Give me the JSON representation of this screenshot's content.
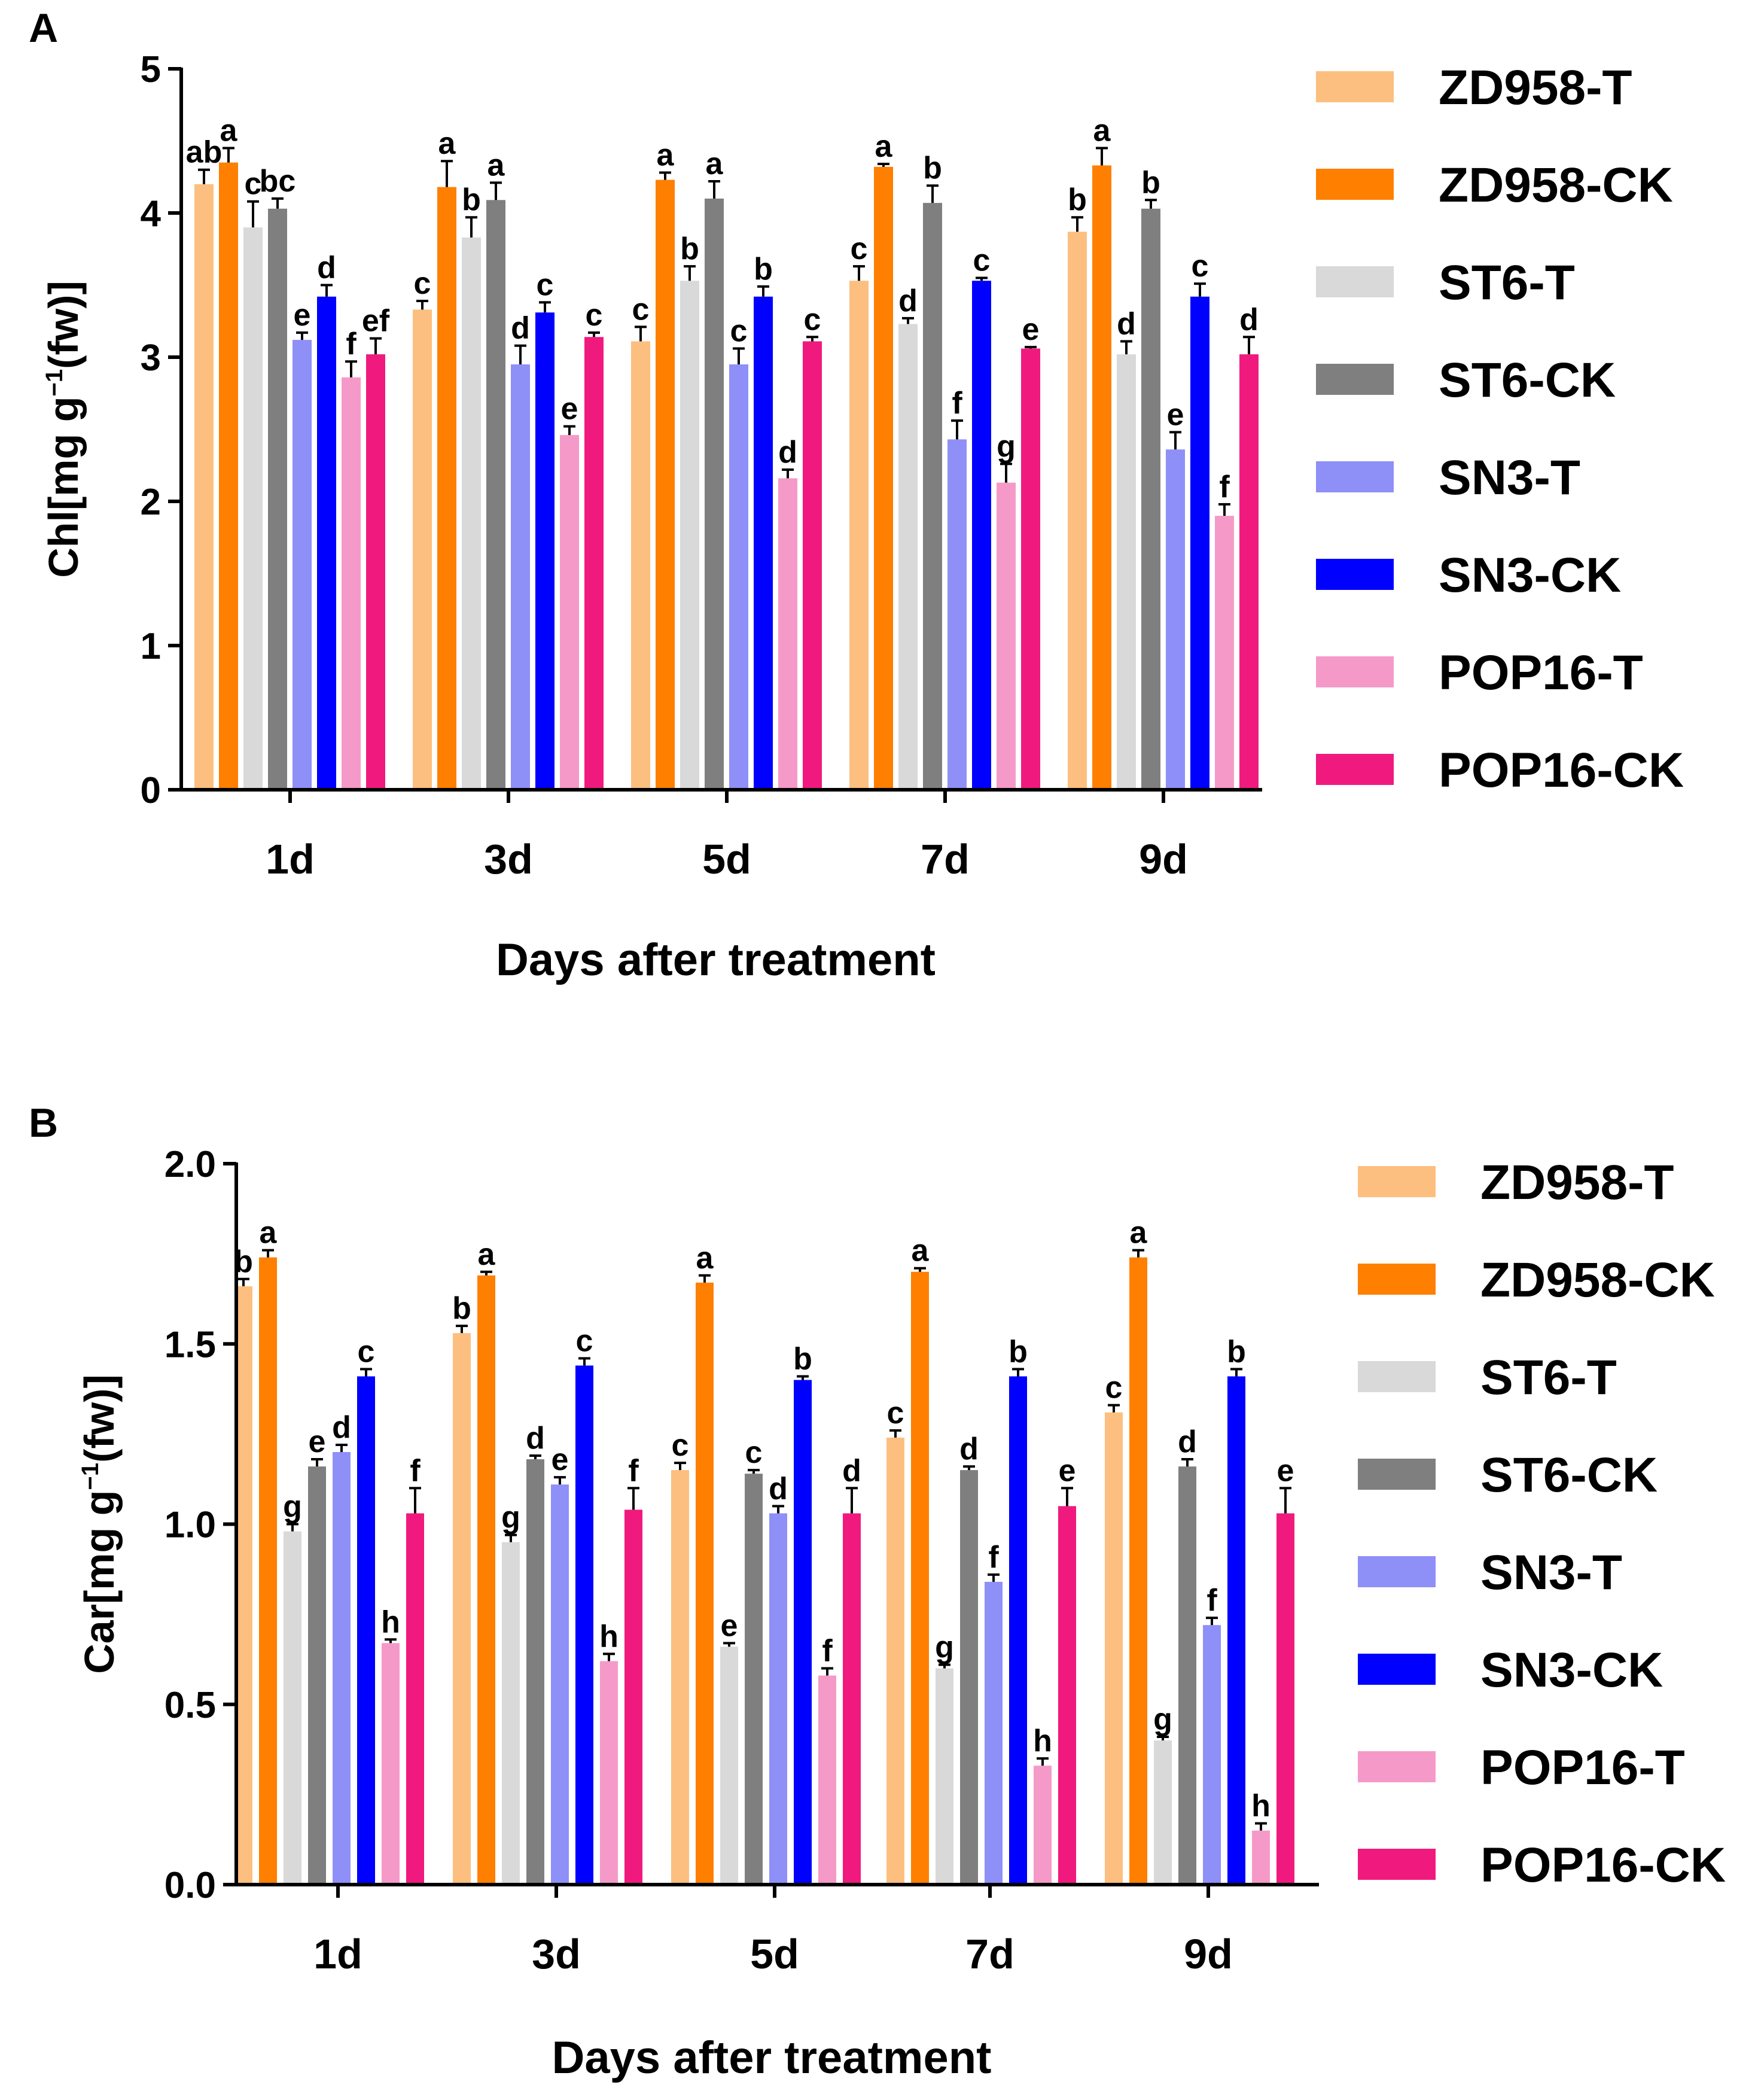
{
  "chart_data": [
    {
      "panel": "A",
      "type": "bar",
      "categories": [
        "1d",
        "3d",
        "5d",
        "7d",
        "9d"
      ],
      "ylabel_main": "Chl[mg g",
      "ylabel_sup": "−1",
      "ylabel_tail": "(fw)]",
      "xlabel": "Days after treatment",
      "ylim": [
        0,
        5
      ],
      "yticks": [
        "0",
        "1",
        "2",
        "3",
        "4",
        "5"
      ],
      "series": [
        {
          "name": "ZD958-T",
          "color": "#FDBF7F",
          "values": [
            4.2,
            3.33,
            3.11,
            3.53,
            3.87
          ],
          "errors": [
            0.1,
            0.06,
            0.1,
            0.1,
            0.1
          ],
          "letters": [
            "ab",
            "c",
            "c",
            "c",
            "b"
          ]
        },
        {
          "name": "ZD958-CK",
          "color": "#FF7F00",
          "values": [
            4.35,
            4.18,
            4.23,
            4.32,
            4.33
          ],
          "errors": [
            0.1,
            0.18,
            0.05,
            0.02,
            0.12
          ],
          "letters": [
            "a",
            "a",
            "a",
            "a",
            "a"
          ]
        },
        {
          "name": "ST6-T",
          "color": "#D9D9D9",
          "values": [
            3.9,
            3.83,
            3.53,
            3.23,
            3.02
          ],
          "errors": [
            0.18,
            0.14,
            0.1,
            0.04,
            0.09
          ],
          "letters": [
            "c",
            "b",
            "b",
            "d",
            "d"
          ]
        },
        {
          "name": "ST6-CK",
          "color": "#7F7F7F",
          "values": [
            4.03,
            4.09,
            4.1,
            4.07,
            4.03
          ],
          "errors": [
            0.07,
            0.12,
            0.12,
            0.12,
            0.06
          ],
          "letters": [
            "bc",
            "a",
            "a",
            "b",
            "b"
          ]
        },
        {
          "name": "SN3-T",
          "color": "#8F8FF8",
          "values": [
            3.12,
            2.95,
            2.95,
            2.43,
            2.36
          ],
          "errors": [
            0.05,
            0.13,
            0.11,
            0.13,
            0.12
          ],
          "letters": [
            "e",
            "d",
            "c",
            "f",
            "e"
          ]
        },
        {
          "name": "SN3-CK",
          "color": "#0000FF",
          "values": [
            3.42,
            3.31,
            3.42,
            3.53,
            3.42
          ],
          "errors": [
            0.08,
            0.07,
            0.07,
            0.02,
            0.09
          ],
          "letters": [
            "d",
            "c",
            "b",
            "c",
            "c"
          ]
        },
        {
          "name": "POP16-T",
          "color": "#F59AC8",
          "values": [
            2.86,
            2.46,
            2.16,
            2.13,
            1.9
          ],
          "errors": [
            0.11,
            0.06,
            0.06,
            0.13,
            0.08
          ],
          "letters": [
            "f",
            "e",
            "d",
            "g",
            "f"
          ]
        },
        {
          "name": "POP16-CK",
          "color": "#F01A7F",
          "values": [
            3.02,
            3.14,
            3.11,
            3.06,
            3.02
          ],
          "errors": [
            0.11,
            0.03,
            0.03,
            0.01,
            0.12
          ],
          "letters": [
            "ef",
            "c",
            "c",
            "e",
            "d"
          ]
        }
      ]
    },
    {
      "panel": "B",
      "type": "bar",
      "categories": [
        "1d",
        "3d",
        "5d",
        "7d",
        "9d"
      ],
      "ylabel_main": "Car[mg g",
      "ylabel_sup": "−1",
      "ylabel_tail": "(fw)]",
      "xlabel": "Days after treatment",
      "ylim": [
        0,
        2
      ],
      "yticks": [
        "0.0",
        "0.5",
        "1.0",
        "1.5",
        "2.0"
      ],
      "series": [
        {
          "name": "ZD958-T",
          "color": "#FDBF7F",
          "values": [
            1.66,
            1.53,
            1.15,
            1.24,
            1.31
          ],
          "errors": [
            0.02,
            0.02,
            0.02,
            0.02,
            0.02
          ],
          "letters": [
            "b",
            "b",
            "c",
            "c",
            "c"
          ]
        },
        {
          "name": "ZD958-CK",
          "color": "#FF7F00",
          "values": [
            1.74,
            1.69,
            1.67,
            1.7,
            1.74
          ],
          "errors": [
            0.02,
            0.01,
            0.02,
            0.01,
            0.02
          ],
          "letters": [
            "a",
            "a",
            "a",
            "a",
            "a"
          ]
        },
        {
          "name": "ST6-T",
          "color": "#D9D9D9",
          "values": [
            0.98,
            0.95,
            0.66,
            0.6,
            0.4
          ],
          "errors": [
            0.02,
            0.02,
            0.01,
            0.01,
            0.01
          ],
          "letters": [
            "g",
            "g",
            "e",
            "g",
            "g"
          ]
        },
        {
          "name": "ST6-CK",
          "color": "#7F7F7F",
          "values": [
            1.16,
            1.18,
            1.14,
            1.15,
            1.16
          ],
          "errors": [
            0.02,
            0.01,
            0.01,
            0.01,
            0.02
          ],
          "letters": [
            "e",
            "d",
            "c",
            "d",
            "d"
          ]
        },
        {
          "name": "SN3-T",
          "color": "#8F8FF8",
          "values": [
            1.2,
            1.11,
            1.03,
            0.84,
            0.72
          ],
          "errors": [
            0.02,
            0.02,
            0.02,
            0.02,
            0.02
          ],
          "letters": [
            "d",
            "e",
            "d",
            "f",
            "f"
          ]
        },
        {
          "name": "SN3-CK",
          "color": "#0000FF",
          "values": [
            1.41,
            1.44,
            1.4,
            1.41,
            1.41
          ],
          "errors": [
            0.02,
            0.02,
            0.01,
            0.02,
            0.02
          ],
          "letters": [
            "c",
            "c",
            "b",
            "b",
            "b"
          ]
        },
        {
          "name": "POP16-T",
          "color": "#F59AC8",
          "values": [
            0.67,
            0.62,
            0.58,
            0.33,
            0.15
          ],
          "errors": [
            0.01,
            0.02,
            0.02,
            0.02,
            0.02
          ],
          "letters": [
            "h",
            "h",
            "f",
            "h",
            "h"
          ]
        },
        {
          "name": "POP16-CK",
          "color": "#F01A7F",
          "values": [
            1.03,
            1.04,
            1.03,
            1.05,
            1.03
          ],
          "errors": [
            0.07,
            0.06,
            0.07,
            0.05,
            0.07
          ],
          "letters": [
            "f",
            "f",
            "d",
            "e",
            "e"
          ]
        }
      ]
    }
  ]
}
